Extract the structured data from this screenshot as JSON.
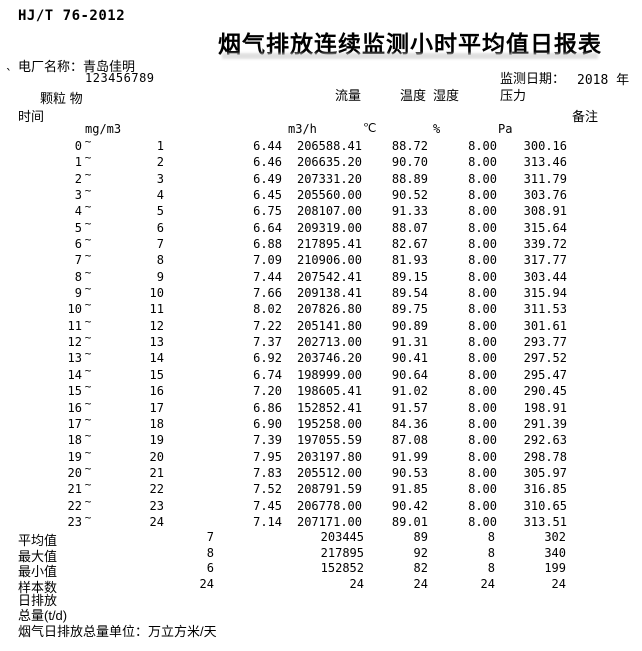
{
  "colors": {
    "text": "#000000",
    "background": "#ffffff",
    "title_echo": "#d0d0d0"
  },
  "doc": {
    "standard": "HJ/T 76-2012",
    "title": "烟气排放连续监测小时平均值日报表",
    "plant_label": "电厂名称：",
    "plant_name": "青岛佳明",
    "code_prefix": "`",
    "plant_code": "123456789",
    "date_label": "监测日期：",
    "date_value": "2018 年"
  },
  "header": {
    "time_label": "时间",
    "remark_label": "备注",
    "col_dust": "颗粒 物",
    "col_flow": "流量",
    "col_temp": "温度",
    "col_humidity": "湿度",
    "col_pressure": "压力",
    "unit_dust": "mg/m3",
    "unit_flow": "m3/h",
    "unit_temp": "℃",
    "unit_humidity": "%",
    "unit_pressure": "Pa"
  },
  "rows": [
    {
      "start": "0",
      "tilde": "~",
      "end": "1",
      "dust": "6.44",
      "flow": "206588.41",
      "temp": "88.72",
      "humidity": "8.00",
      "pressure": "300.16"
    },
    {
      "start": "1",
      "tilde": "~",
      "end": "2",
      "dust": "6.46",
      "flow": "206635.20",
      "temp": "90.70",
      "humidity": "8.00",
      "pressure": "313.46"
    },
    {
      "start": "2",
      "tilde": "~",
      "end": "3",
      "dust": "6.49",
      "flow": "207331.20",
      "temp": "88.89",
      "humidity": "8.00",
      "pressure": "311.79"
    },
    {
      "start": "3",
      "tilde": "~",
      "end": "4",
      "dust": "6.45",
      "flow": "205560.00",
      "temp": "90.52",
      "humidity": "8.00",
      "pressure": "303.76"
    },
    {
      "start": "4",
      "tilde": "~",
      "end": "5",
      "dust": "6.75",
      "flow": "208107.00",
      "temp": "91.33",
      "humidity": "8.00",
      "pressure": "308.91"
    },
    {
      "start": "5",
      "tilde": "~",
      "end": "6",
      "dust": "6.64",
      "flow": "209319.00",
      "temp": "88.07",
      "humidity": "8.00",
      "pressure": "315.64"
    },
    {
      "start": "6",
      "tilde": "~",
      "end": "7",
      "dust": "6.88",
      "flow": "217895.41",
      "temp": "82.67",
      "humidity": "8.00",
      "pressure": "339.72"
    },
    {
      "start": "7",
      "tilde": "~",
      "end": "8",
      "dust": "7.09",
      "flow": "210906.00",
      "temp": "81.93",
      "humidity": "8.00",
      "pressure": "317.77"
    },
    {
      "start": "8",
      "tilde": "~",
      "end": "9",
      "dust": "7.44",
      "flow": "207542.41",
      "temp": "89.15",
      "humidity": "8.00",
      "pressure": "303.44"
    },
    {
      "start": "9",
      "tilde": "~",
      "end": "10",
      "dust": "7.66",
      "flow": "209138.41",
      "temp": "89.54",
      "humidity": "8.00",
      "pressure": "315.94"
    },
    {
      "start": "10",
      "tilde": "~",
      "end": "11",
      "dust": "8.02",
      "flow": "207826.80",
      "temp": "89.75",
      "humidity": "8.00",
      "pressure": "311.53"
    },
    {
      "start": "11",
      "tilde": "~",
      "end": "12",
      "dust": "7.22",
      "flow": "205141.80",
      "temp": "90.89",
      "humidity": "8.00",
      "pressure": "301.61"
    },
    {
      "start": "12",
      "tilde": "~",
      "end": "13",
      "dust": "7.37",
      "flow": "202713.00",
      "temp": "91.31",
      "humidity": "8.00",
      "pressure": "293.77"
    },
    {
      "start": "13",
      "tilde": "~",
      "end": "14",
      "dust": "6.92",
      "flow": "203746.20",
      "temp": "90.41",
      "humidity": "8.00",
      "pressure": "297.52"
    },
    {
      "start": "14",
      "tilde": "~",
      "end": "15",
      "dust": "6.74",
      "flow": "198999.00",
      "temp": "90.64",
      "humidity": "8.00",
      "pressure": "295.47"
    },
    {
      "start": "15",
      "tilde": "~",
      "end": "16",
      "dust": "7.20",
      "flow": "198605.41",
      "temp": "91.02",
      "humidity": "8.00",
      "pressure": "290.45"
    },
    {
      "start": "16",
      "tilde": "~",
      "end": "17",
      "dust": "6.86",
      "flow": "152852.41",
      "temp": "91.57",
      "humidity": "8.00",
      "pressure": "198.91"
    },
    {
      "start": "17",
      "tilde": "~",
      "end": "18",
      "dust": "6.90",
      "flow": "195258.00",
      "temp": "84.36",
      "humidity": "8.00",
      "pressure": "291.39"
    },
    {
      "start": "18",
      "tilde": "~",
      "end": "19",
      "dust": "7.39",
      "flow": "197055.59",
      "temp": "87.08",
      "humidity": "8.00",
      "pressure": "292.63"
    },
    {
      "start": "19",
      "tilde": "~",
      "end": "20",
      "dust": "7.95",
      "flow": "203197.80",
      "temp": "91.99",
      "humidity": "8.00",
      "pressure": "298.78"
    },
    {
      "start": "20",
      "tilde": "~",
      "end": "21",
      "dust": "7.83",
      "flow": "205512.00",
      "temp": "90.53",
      "humidity": "8.00",
      "pressure": "305.97"
    },
    {
      "start": "21",
      "tilde": "~",
      "end": "22",
      "dust": "7.52",
      "flow": "208791.59",
      "temp": "91.85",
      "humidity": "8.00",
      "pressure": "316.85"
    },
    {
      "start": "22",
      "tilde": "~",
      "end": "23",
      "dust": "7.45",
      "flow": "206778.00",
      "temp": "90.42",
      "humidity": "8.00",
      "pressure": "310.65"
    },
    {
      "start": "23",
      "tilde": "~",
      "end": "24",
      "dust": "7.14",
      "flow": "207171.00",
      "temp": "89.01",
      "humidity": "8.00",
      "pressure": "313.51"
    }
  ],
  "summary": [
    {
      "label": "平均值",
      "dust": "7",
      "flow": "203445",
      "temp": "89",
      "humidity": "8",
      "pressure": "302"
    },
    {
      "label": "最大值",
      "dust": "8",
      "flow": "217895",
      "temp": "92",
      "humidity": "8",
      "pressure": "340"
    },
    {
      "label": "最小值",
      "dust": "6",
      "flow": "152852",
      "temp": "82",
      "humidity": "8",
      "pressure": "199"
    },
    {
      "label": "样本数",
      "dust": "24",
      "flow": "24",
      "temp": "24",
      "humidity": "24",
      "pressure": "24"
    }
  ],
  "footer": {
    "daily_line1": "日排放",
    "daily_line2": "总量(t/d)",
    "unit_note": "烟气日排放总量单位：万立方米/天"
  }
}
